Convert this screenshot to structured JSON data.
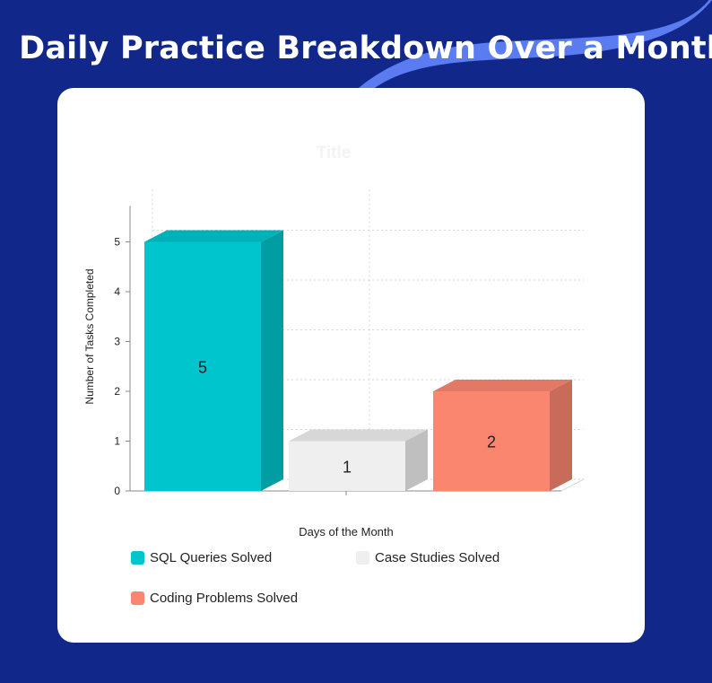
{
  "page": {
    "heading": "Daily Practice Breakdown Over a Month"
  },
  "colors": {
    "background": "#11288a",
    "swoosh": "#5a7cf0",
    "card": "#ffffff"
  },
  "chart_data": {
    "type": "bar",
    "title": "Title",
    "xlabel": "Days of the Month",
    "ylabel": "Number of Tasks Completed",
    "ylim": [
      0,
      5
    ],
    "yticks": [
      0,
      1,
      2,
      3,
      4,
      5
    ],
    "grid": true,
    "legend_position": "bottom",
    "series": [
      {
        "name": "SQL Queries Solved",
        "value": 5,
        "color": "#00c5cc"
      },
      {
        "name": "Case Studies Solved",
        "value": 1,
        "color": "#efefef"
      },
      {
        "name": "Coding Problems Solved",
        "value": 2,
        "color": "#fa8670"
      }
    ]
  }
}
